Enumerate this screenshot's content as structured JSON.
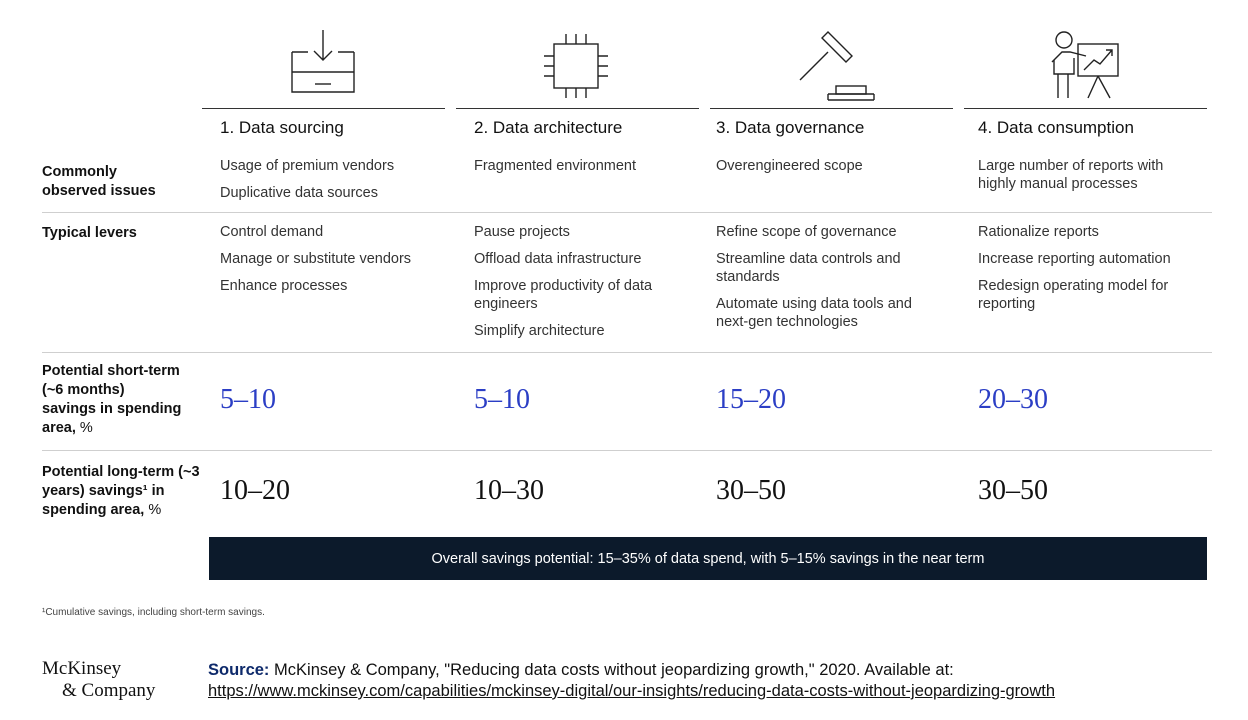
{
  "columns": [
    {
      "title": "1. Data sourcing",
      "icon": "inbox-download-icon"
    },
    {
      "title": "2. Data architecture",
      "icon": "chip-icon"
    },
    {
      "title": "3. Data governance",
      "icon": "gavel-icon"
    },
    {
      "title": "4. Data consumption",
      "icon": "presenter-chart-icon"
    }
  ],
  "rows": {
    "issues": {
      "label": "Commonly observed issues",
      "cells": [
        [
          "Usage of premium vendors",
          "Duplicative data sources"
        ],
        [
          "Fragmented environment"
        ],
        [
          "Overengineered scope"
        ],
        [
          "Large number of reports with highly manual processes"
        ]
      ]
    },
    "levers": {
      "label": "Typical levers",
      "cells": [
        [
          "Control demand",
          "Manage or substitute vendors",
          "Enhance processes"
        ],
        [
          "Pause projects",
          "Offload data infrastructure",
          "Improve productivity of data engineers",
          "Simplify architecture"
        ],
        [
          "Refine scope of governance",
          "Streamline data controls and standards",
          "Automate using data tools and next-gen technologies"
        ],
        [
          "Rationalize reports",
          "Increase reporting automation",
          "Redesign operating model for reporting"
        ]
      ]
    },
    "short_term": {
      "label_bold": "Potential short-term (~6 months) savings in spending area,",
      "label_unit": "%",
      "values": [
        "5–10",
        "5–10",
        "15–20",
        "20–30"
      ],
      "color": "#2b3ec5"
    },
    "long_term": {
      "label_bold": "Potential long-term (~3 years) savings¹ in spending area,",
      "label_unit": "%",
      "values": [
        "10–20",
        "10–30",
        "30–50",
        "30–50"
      ]
    }
  },
  "banner": "Overall savings potential: 15–35% of data spend, with 5–15% savings in the near term",
  "footnote": "¹Cumulative savings, including short-term savings.",
  "logo": {
    "line1": "McKinsey",
    "line2": "& Company"
  },
  "source": {
    "label": "Source:",
    "text": " McKinsey & Company, \"Reducing data costs without jeopardizing growth,\" 2020. Available at:",
    "url": "https://www.mckinsey.com/capabilities/mckinsey-digital/our-insights/reducing-data-costs-without-jeopardizing-growth"
  },
  "colors": {
    "accent_blue": "#2b3ec5",
    "banner_bg": "#0c1a2b",
    "source_label": "#0e2a6b"
  }
}
